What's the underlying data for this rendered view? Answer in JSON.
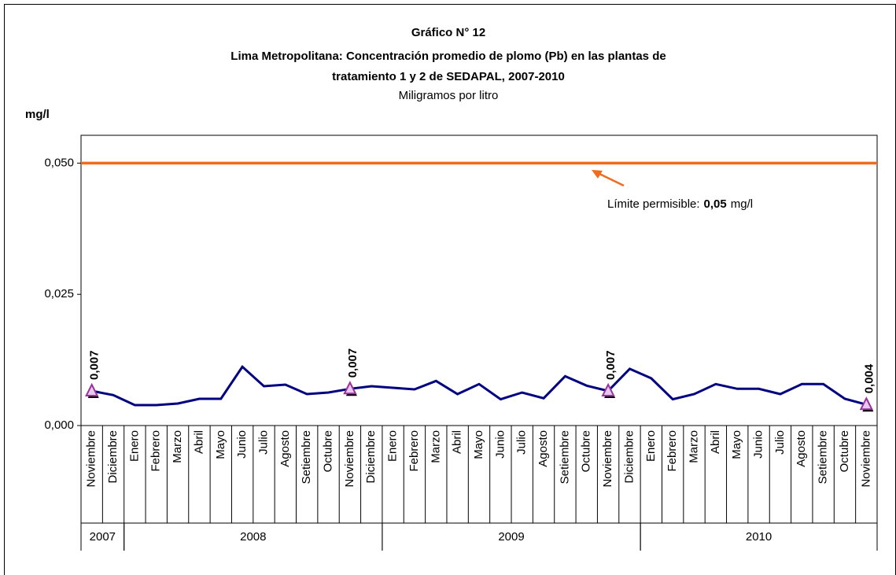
{
  "chart_data": {
    "type": "line",
    "title": "Gráfico N° 12",
    "title_lines": [
      "Lima Metropolitana: Concentración promedio de plomo (Pb) en las plantas de",
      "tratamiento 1 y 2 de SEDAPAL, 2007-2010"
    ],
    "subtitle": "Miligramos por litro",
    "y_label": "mg/l",
    "categories": [
      "Noviembre",
      "Diciembre",
      "Enero",
      "Febrero",
      "Marzo",
      "Abril",
      "Mayo",
      "Junio",
      "Julio",
      "Agosto",
      "Setiembre",
      "Octubre",
      "Noviembre",
      "Diciembre",
      "Enero",
      "Febrero",
      "Marzo",
      "Abril",
      "Mayo",
      "Junio",
      "Julio",
      "Agosto",
      "Setiembre",
      "Octubre",
      "Noviembre",
      "Diciembre",
      "Enero",
      "Febrero",
      "Marzo",
      "Abril",
      "Mayo",
      "Junio",
      "Julio",
      "Agosto",
      "Setiembre",
      "Octubre",
      "Noviembre"
    ],
    "groups": [
      {
        "label": "2007",
        "count": 2
      },
      {
        "label": "2008",
        "count": 12
      },
      {
        "label": "2009",
        "count": 12
      },
      {
        "label": "2010",
        "count": 11
      }
    ],
    "series": [
      {
        "color": "#000080",
        "marker_color": "#993399",
        "values": [
          0.0066,
          0.0058,
          0.0039,
          0.0039,
          0.0042,
          0.0051,
          0.0051,
          0.0112,
          0.0075,
          0.0078,
          0.006,
          0.0063,
          0.007,
          0.0075,
          0.0072,
          0.0069,
          0.0085,
          0.006,
          0.0079,
          0.005,
          0.0063,
          0.0052,
          0.0094,
          0.0076,
          0.0066,
          0.0108,
          0.009,
          0.005,
          0.006,
          0.0079,
          0.007,
          0.007,
          0.006,
          0.0079,
          0.0079,
          0.0051,
          0.004
        ],
        "value_labels": [
          "0,007",
          null,
          null,
          null,
          null,
          null,
          null,
          null,
          null,
          null,
          null,
          null,
          "0,007",
          null,
          null,
          null,
          null,
          null,
          null,
          null,
          null,
          null,
          null,
          null,
          "0,007",
          null,
          null,
          null,
          null,
          null,
          null,
          null,
          null,
          null,
          null,
          null,
          "0,004"
        ]
      }
    ],
    "limit": {
      "text": "Límite permisible:",
      "value": 0.05,
      "value_label": "0,05",
      "unit": "mg/l",
      "color": "#f26a1b"
    },
    "ylim": [
      0,
      0.0553
    ],
    "yticks": [
      {
        "value": 0,
        "label": "0,000"
      },
      {
        "value": 0.025,
        "label": "0,025"
      },
      {
        "value": 0.05,
        "label": "0,050"
      }
    ]
  }
}
